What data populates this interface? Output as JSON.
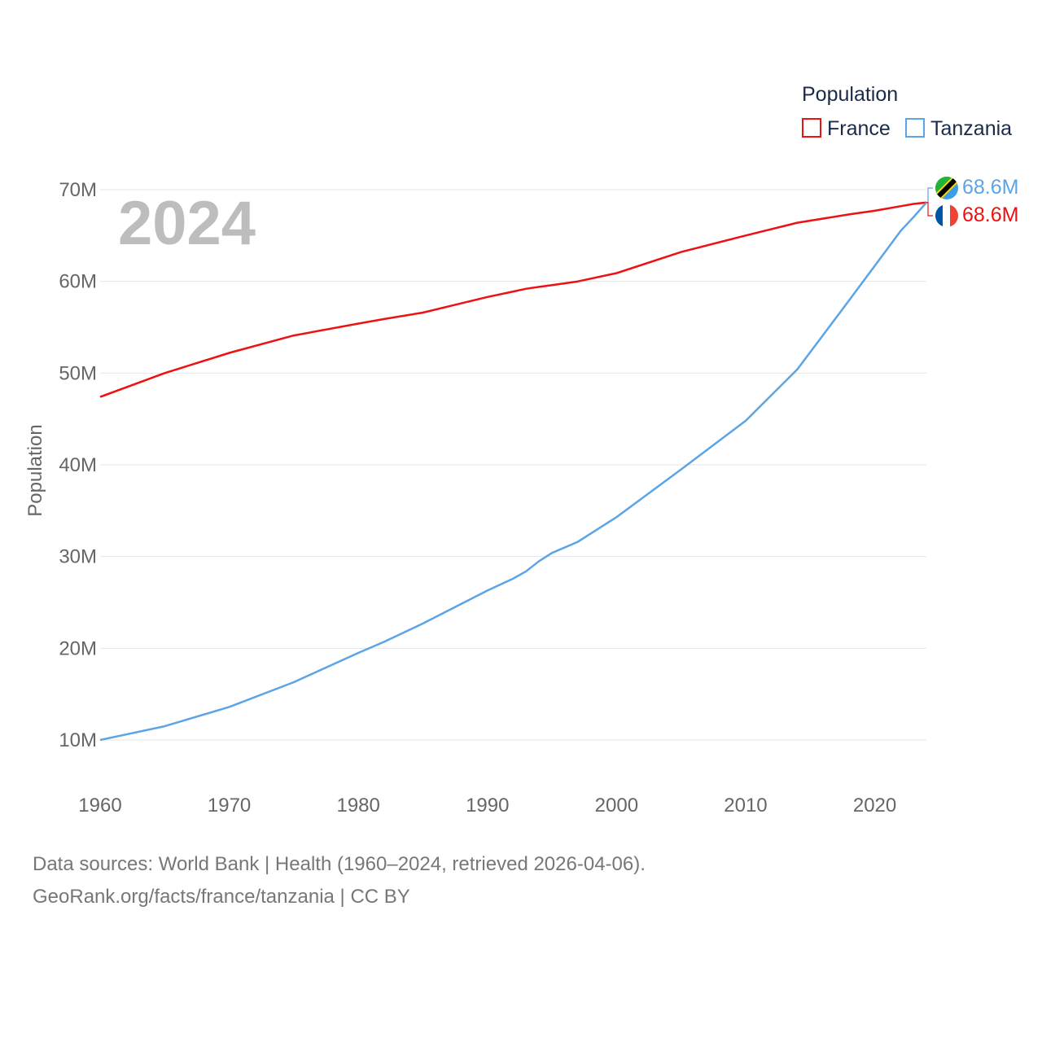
{
  "chart_data": {
    "type": "line",
    "legend_title": "Population",
    "legend_position": "top-right",
    "current_year_label": "2024",
    "ylabel": "Population",
    "xlabel": "",
    "xlim": [
      1960,
      2024
    ],
    "ylim": [
      10000000,
      70000000
    ],
    "x_ticks": [
      1960,
      1970,
      1980,
      1990,
      2000,
      2010,
      2020
    ],
    "x_tick_labels": [
      "1960",
      "1970",
      "1980",
      "1990",
      "2000",
      "2010",
      "2020"
    ],
    "y_ticks": [
      10000000,
      20000000,
      30000000,
      40000000,
      50000000,
      60000000,
      70000000
    ],
    "y_tick_labels": [
      "10M",
      "20M",
      "30M",
      "40M",
      "50M",
      "60M",
      "70M"
    ],
    "x": [
      1960,
      1965,
      1970,
      1975,
      1980,
      1982,
      1985,
      1990,
      1992,
      1993,
      1994,
      1995,
      1997,
      2000,
      2005,
      2010,
      2014,
      2018,
      2020,
      2022,
      2023,
      2024
    ],
    "series": [
      {
        "name": "France",
        "color": "#ee1111",
        "flag": "france-flag",
        "end_label": "68.6M",
        "values": [
          47.4,
          50.0,
          52.2,
          54.1,
          55.4,
          55.9,
          56.6,
          58.3,
          58.9,
          59.2,
          59.4,
          59.6,
          60.0,
          60.9,
          63.2,
          65.0,
          66.4,
          67.3,
          67.7,
          68.2,
          68.45,
          68.6
        ]
      },
      {
        "name": "Tanzania",
        "color": "#5ba4e6",
        "flag": "tanzania-flag",
        "end_label": "68.6M",
        "values": [
          10.0,
          11.5,
          13.6,
          16.3,
          19.5,
          20.7,
          22.7,
          26.3,
          27.6,
          28.4,
          29.5,
          30.4,
          31.6,
          34.3,
          39.5,
          44.8,
          50.4,
          57.9,
          61.7,
          65.5,
          67.0,
          68.6
        ]
      }
    ]
  },
  "footer": {
    "line1": "Data sources: World Bank | Health (1960–2024, retrieved 2026-04-06).",
    "line2": "GeoRank.org/facts/france/tanzania | CC BY"
  }
}
